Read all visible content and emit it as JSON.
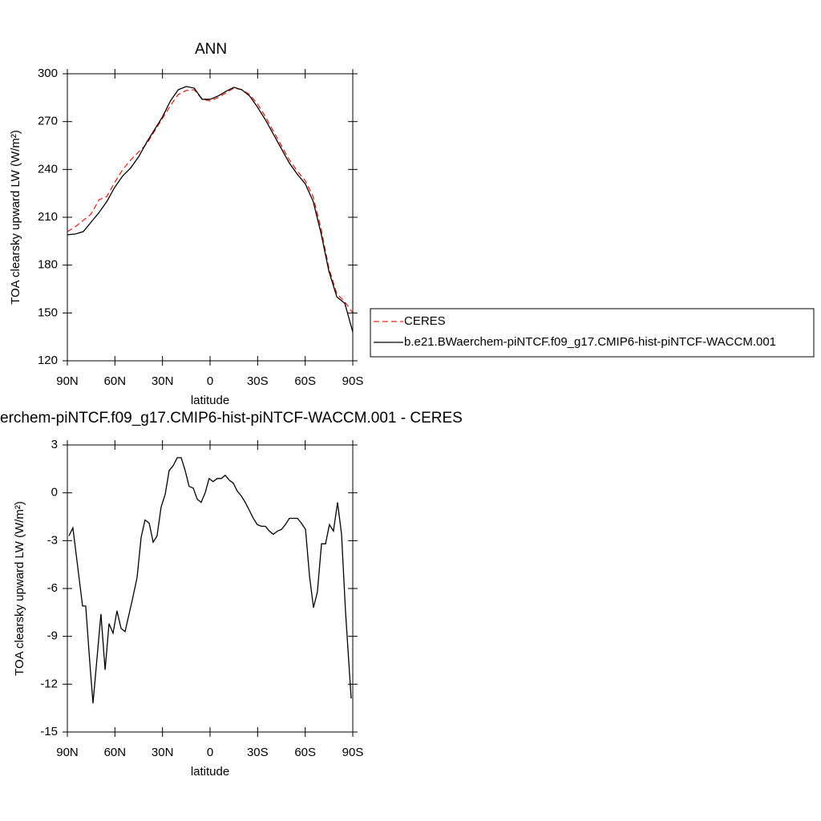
{
  "chart_data": [
    {
      "type": "line",
      "title": "ANN",
      "xlabel": "latitude",
      "ylabel": "TOA clearsky upward LW (W/m²)",
      "x": [
        90,
        85,
        80,
        75,
        70,
        65,
        60,
        55,
        50,
        45,
        40,
        35,
        30,
        25,
        20,
        15,
        10,
        5,
        0,
        -5,
        -10,
        -15,
        -20,
        -25,
        -30,
        -35,
        -40,
        -45,
        -50,
        -55,
        -60,
        -65,
        -70,
        -75,
        -80,
        -85,
        -90
      ],
      "series": [
        {
          "name": "CERES",
          "color": "#e8261c",
          "line_style": "dashed",
          "values": [
            201,
            204,
            208,
            212,
            221,
            223,
            232,
            240,
            246,
            251,
            256,
            264,
            272,
            280,
            287,
            289.5,
            290,
            284,
            283,
            285,
            288,
            291,
            290,
            287,
            281,
            273,
            264,
            255,
            246,
            239,
            233,
            223,
            203,
            178,
            162,
            157,
            150
          ]
        },
        {
          "name": "b.e21.BWaerchem-piNTCF.f09_g17.CMIP6-hist-piNTCF-WACCM.001",
          "color": "#000000",
          "line_style": "solid",
          "values": [
            199,
            199.5,
            201,
            207,
            213,
            220,
            229,
            236,
            241,
            248,
            257,
            265,
            273,
            283,
            290,
            292,
            291,
            284,
            284,
            286,
            289,
            291.5,
            290,
            286,
            279,
            271,
            262,
            253,
            244,
            237,
            231,
            220,
            200,
            176,
            160,
            156,
            138
          ]
        }
      ],
      "xlim": [
        90,
        -90
      ],
      "xticks": [
        {
          "value": 90,
          "label": "90N"
        },
        {
          "value": 60,
          "label": "60N"
        },
        {
          "value": 30,
          "label": "30N"
        },
        0,
        {
          "value": -30,
          "label": "30S"
        },
        {
          "value": -60,
          "label": "60S"
        },
        {
          "value": -90,
          "label": "90S"
        }
      ],
      "ylim": [
        120,
        300
      ],
      "yticks": [
        120,
        150,
        180,
        210,
        240,
        270,
        300
      ],
      "grid": false,
      "legend": "right"
    },
    {
      "type": "line",
      "title": "erchem-piNTCF.f09_g17.CMIP6-hist-piNTCF-WACCM.001 - CERES",
      "xlabel": "latitude",
      "ylabel": "TOA clearsky upward LW (W/m²)",
      "x": [
        89,
        86.5,
        80.4,
        78.4,
        75.8,
        73.8,
        68.8,
        66.2,
        63.7,
        61.2,
        58.7,
        56.1,
        53.6,
        49.0,
        46.0,
        43.5,
        41.0,
        38.4,
        35.9,
        33.4,
        30.9,
        28.3,
        25.8,
        23.3,
        20.7,
        18.2,
        15.7,
        13.2,
        10.6,
        8.1,
        5.6,
        3.1,
        0.6,
        -1.9,
        -4.5,
        -7.1,
        -9.6,
        -12.1,
        -14.7,
        -17.2,
        -19.7,
        -22.2,
        -24.8,
        -27.3,
        -29.8,
        -32.3,
        -34.9,
        -37.4,
        -39.9,
        -42.5,
        -45.0,
        -47.5,
        -50.0,
        -52.6,
        -55.1,
        -57.6,
        -60.2,
        -62.7,
        -65.2,
        -67.7,
        -70.3,
        -72.8,
        -75.3,
        -77.8,
        -80.4,
        -82.9,
        -85.4,
        -89
      ],
      "values": [
        -2.7,
        -2.2,
        -7.1,
        -7.1,
        -10.7,
        -13.2,
        -7.6,
        -11.1,
        -8.2,
        -8.8,
        -7.4,
        -8.5,
        -8.7,
        -6.7,
        -5.3,
        -2.8,
        -1.7,
        -1.9,
        -3.1,
        -2.7,
        -0.9,
        -0.1,
        1.4,
        1.7,
        2.2,
        2.2,
        1.4,
        0.4,
        0.3,
        -0.4,
        -0.6,
        0.0,
        0.9,
        0.7,
        0.9,
        0.9,
        1.1,
        0.8,
        0.6,
        0.1,
        -0.2,
        -0.6,
        -1.1,
        -1.6,
        -2.0,
        -2.1,
        -2.1,
        -2.4,
        -2.6,
        -2.4,
        -2.3,
        -2.0,
        -1.6,
        -1.6,
        -1.6,
        -1.9,
        -2.3,
        -5.2,
        -7.2,
        -6.2,
        -3.2,
        -3.2,
        -2.0,
        -2.4,
        -0.6,
        -2.6,
        -7.4,
        -12.9
      ],
      "color": "#000000",
      "xlim": [
        90,
        -90
      ],
      "xticks": [
        {
          "value": 90,
          "label": "90N"
        },
        {
          "value": 60,
          "label": "60N"
        },
        {
          "value": 30,
          "label": "30N"
        },
        0,
        {
          "value": -30,
          "label": "30S"
        },
        {
          "value": -60,
          "label": "60S"
        },
        {
          "value": -90,
          "label": "90S"
        }
      ],
      "ylim": [
        -15,
        3
      ],
      "yticks": [
        -15,
        -12,
        -9,
        -6,
        -3,
        0,
        3
      ],
      "grid": false
    }
  ]
}
